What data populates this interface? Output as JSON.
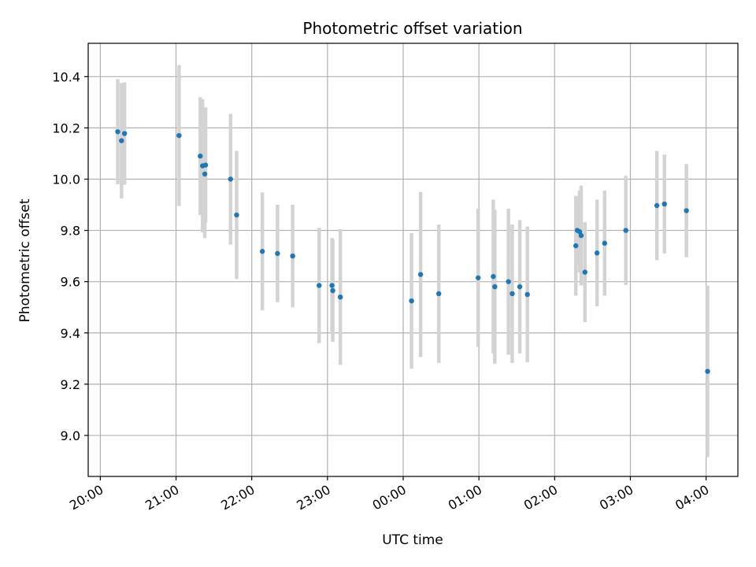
{
  "chart_data": {
    "type": "scatter",
    "title": "Photometric offset variation",
    "xlabel": "UTC time",
    "ylabel": "Photometric offset",
    "x_unit": "hours",
    "xlim": [
      19.84,
      28.42
    ],
    "ylim": [
      8.84,
      10.53
    ],
    "grid": true,
    "x_ticks": [
      {
        "value": 20,
        "label": "20:00"
      },
      {
        "value": 21,
        "label": "21:00"
      },
      {
        "value": 22,
        "label": "22:00"
      },
      {
        "value": 23,
        "label": "23:00"
      },
      {
        "value": 24,
        "label": "00:00"
      },
      {
        "value": 25,
        "label": "01:00"
      },
      {
        "value": 26,
        "label": "02:00"
      },
      {
        "value": 27,
        "label": "03:00"
      },
      {
        "value": 28,
        "label": "04:00"
      }
    ],
    "y_ticks": [
      {
        "value": 9.0,
        "label": "9.0"
      },
      {
        "value": 9.2,
        "label": "9.2"
      },
      {
        "value": 9.4,
        "label": "9.4"
      },
      {
        "value": 9.6,
        "label": "9.6"
      },
      {
        "value": 9.8,
        "label": "9.8"
      },
      {
        "value": 10.0,
        "label": "10.0"
      },
      {
        "value": 10.2,
        "label": "10.2"
      },
      {
        "value": 10.4,
        "label": "10.4"
      }
    ],
    "colors": {
      "point": "#1f77b4",
      "errorbar": "#d3d3d3",
      "grid": "#b0b0b0"
    },
    "points": [
      {
        "x": 20.23,
        "y": 10.185,
        "err": 0.205
      },
      {
        "x": 20.28,
        "y": 10.15,
        "err": 0.225
      },
      {
        "x": 20.32,
        "y": 10.178,
        "err": 0.2
      },
      {
        "x": 21.04,
        "y": 10.17,
        "err": 0.275
      },
      {
        "x": 21.32,
        "y": 10.09,
        "err": 0.23
      },
      {
        "x": 21.35,
        "y": 10.052,
        "err": 0.26
      },
      {
        "x": 21.38,
        "y": 10.02,
        "err": 0.25
      },
      {
        "x": 21.39,
        "y": 10.055,
        "err": 0.225
      },
      {
        "x": 21.72,
        "y": 10.0,
        "err": 0.255
      },
      {
        "x": 21.8,
        "y": 9.86,
        "err": 0.25
      },
      {
        "x": 22.14,
        "y": 9.718,
        "err": 0.23
      },
      {
        "x": 22.34,
        "y": 9.71,
        "err": 0.19
      },
      {
        "x": 22.54,
        "y": 9.7,
        "err": 0.2
      },
      {
        "x": 22.89,
        "y": 9.585,
        "err": 0.225
      },
      {
        "x": 23.06,
        "y": 9.585,
        "err": 0.185
      },
      {
        "x": 23.07,
        "y": 9.565,
        "err": 0.2
      },
      {
        "x": 23.17,
        "y": 9.54,
        "err": 0.265
      },
      {
        "x": 24.11,
        "y": 9.525,
        "err": 0.265
      },
      {
        "x": 24.23,
        "y": 9.628,
        "err": 0.322
      },
      {
        "x": 24.47,
        "y": 9.553,
        "err": 0.27
      },
      {
        "x": 24.99,
        "y": 9.615,
        "err": 0.27
      },
      {
        "x": 25.19,
        "y": 9.62,
        "err": 0.3
      },
      {
        "x": 25.21,
        "y": 9.58,
        "err": 0.3
      },
      {
        "x": 25.39,
        "y": 9.6,
        "err": 0.285
      },
      {
        "x": 25.44,
        "y": 9.553,
        "err": 0.27
      },
      {
        "x": 25.54,
        "y": 9.58,
        "err": 0.26
      },
      {
        "x": 25.64,
        "y": 9.55,
        "err": 0.265
      },
      {
        "x": 26.28,
        "y": 9.74,
        "err": 0.195
      },
      {
        "x": 26.3,
        "y": 9.8,
        "err": 0.13
      },
      {
        "x": 26.33,
        "y": 9.795,
        "err": 0.16
      },
      {
        "x": 26.35,
        "y": 9.78,
        "err": 0.195
      },
      {
        "x": 26.4,
        "y": 9.637,
        "err": 0.195
      },
      {
        "x": 26.56,
        "y": 9.712,
        "err": 0.208
      },
      {
        "x": 26.66,
        "y": 9.75,
        "err": 0.205
      },
      {
        "x": 26.94,
        "y": 9.8,
        "err": 0.213
      },
      {
        "x": 27.35,
        "y": 9.897,
        "err": 0.213
      },
      {
        "x": 27.45,
        "y": 9.903,
        "err": 0.193
      },
      {
        "x": 27.74,
        "y": 9.877,
        "err": 0.182
      },
      {
        "x": 28.02,
        "y": 9.25,
        "err": 0.335
      }
    ]
  }
}
